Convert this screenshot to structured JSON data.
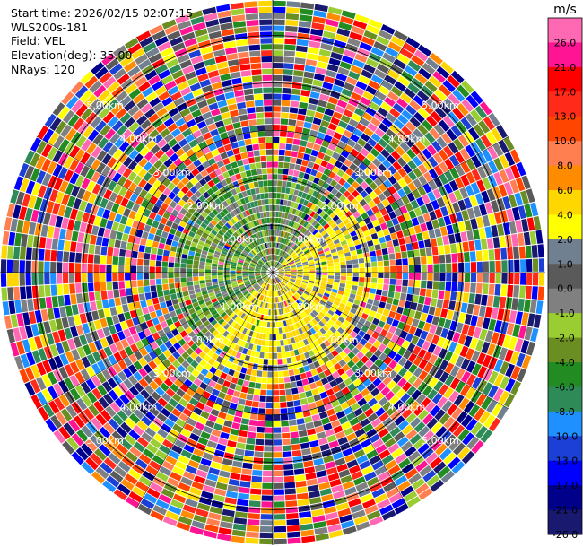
{
  "header": {
    "start_time": "Start time: 2026/02/15 02:07:15",
    "instrument": "WLS200s-181",
    "field": "Field: VEL",
    "elevation": "Elevation(deg): 35.00",
    "nrays": "NRays: 120"
  },
  "chart_data": {
    "type": "ppi",
    "field": "VEL",
    "units": "m/s",
    "nrays": 120,
    "elevation_deg": 35.0,
    "range_rings": [
      {
        "label": "1.00km",
        "value": 1.0
      },
      {
        "label": "2.00km",
        "value": 2.0
      },
      {
        "label": "3.00km",
        "value": 3.0
      },
      {
        "label": "4.00km",
        "value": 4.0
      },
      {
        "label": "5.00km",
        "value": 5.0
      }
    ],
    "colorbar": {
      "title": "m/s",
      "ticks": [
        "26.0",
        "21.0",
        "17.0",
        "13.0",
        "10.0",
        "8.0",
        "6.0",
        "4.0",
        "2.0",
        "1.0",
        "0.0",
        "-1.0",
        "-2.0",
        "-4.0",
        "-6.0",
        "-8.0",
        "-10.0",
        "-13.0",
        "-17.0",
        "-21.0",
        "-26.0",
        "-30.0"
      ],
      "colors": [
        "#ff69b4",
        "#ff1493",
        "#ff0000",
        "#ff2a1a",
        "#ff4500",
        "#ff7f50",
        "#ff8c00",
        "#ffd700",
        "#ffff00",
        "#708090",
        "#5a5a5a",
        "#808080",
        "#9acd32",
        "#6b8e23",
        "#228b22",
        "#2e8b57",
        "#1e90ff",
        "#1c3fd6",
        "#0000ff",
        "#00008b",
        "#191970"
      ]
    },
    "near_field_pattern": "green toward north-west, yellow toward south-east; noisy multicolor beyond about 2 km"
  }
}
